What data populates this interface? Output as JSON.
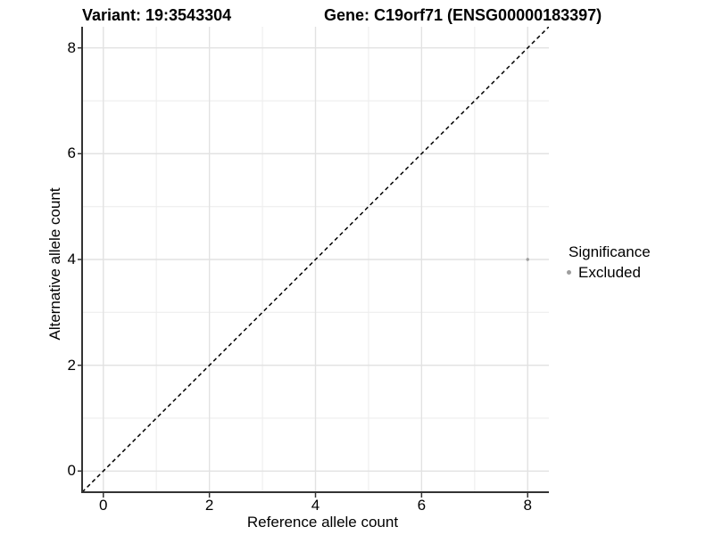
{
  "header": {
    "variant_title": "Variant: 19:3543304",
    "gene_title": "Gene: C19orf71 (ENSG00000183397)"
  },
  "chart_data": {
    "type": "scatter",
    "xlabel": "Reference allele count",
    "ylabel": "Alternative allele count",
    "xlim": [
      -0.4,
      8.4
    ],
    "ylim": [
      -0.4,
      8.4
    ],
    "xticks": [
      0,
      2,
      4,
      6,
      8
    ],
    "yticks": [
      0,
      2,
      4,
      6,
      8
    ],
    "xticks_minor": [
      1,
      3,
      5,
      7
    ],
    "yticks_minor": [
      1,
      3,
      5,
      7
    ],
    "grid": "major+minor",
    "reference_line": {
      "slope": 1,
      "intercept": 0,
      "style": "dashed",
      "color": "#000000"
    },
    "series": [
      {
        "name": "Excluded",
        "color": "#9e9e9e",
        "points": [
          [
            8,
            4
          ]
        ]
      }
    ],
    "legend": {
      "title": "Significance",
      "position": "right",
      "items": [
        {
          "label": "Excluded",
          "color": "#9e9e9e"
        }
      ]
    },
    "colors": {
      "grid_major": "#e2e2e2",
      "grid_minor": "#eeeeee",
      "axis": "#333333",
      "background": "#ffffff"
    }
  }
}
